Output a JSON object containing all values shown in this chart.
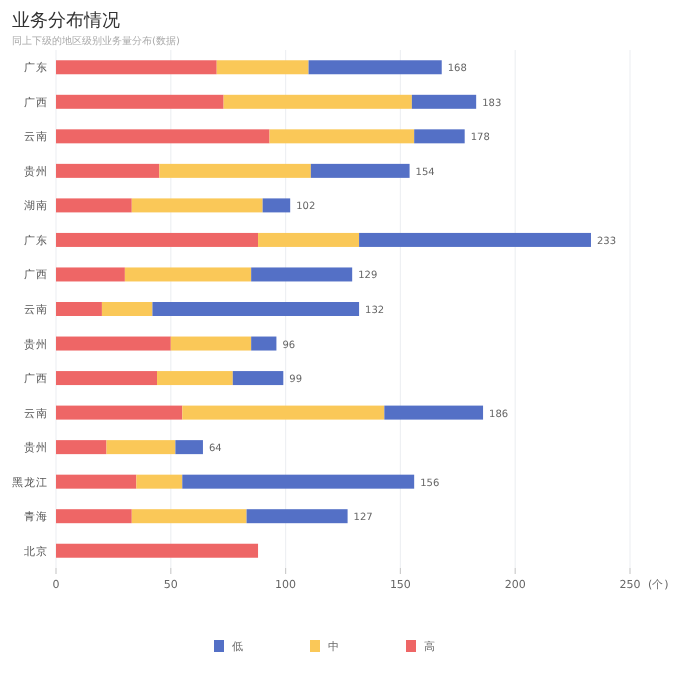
{
  "chart_data": {
    "type": "bar",
    "orientation": "horizontal",
    "stacked": true,
    "title": "业务分布情况",
    "subtitle": "同上下级的地区级别业务量分布(数据)",
    "xlabel": "(个)",
    "categories": [
      "广东",
      "广西",
      "云南",
      "贵州",
      "湖南",
      "广东",
      "广西",
      "云南",
      "贵州",
      "广西",
      "云南",
      "贵州",
      "黑龙江",
      "青海",
      "北京"
    ],
    "series": [
      {
        "name": "高",
        "color": "#ee6666",
        "values": [
          70,
          73,
          93,
          45,
          33,
          88,
          30,
          20,
          50,
          44,
          55,
          22,
          35,
          33,
          88
        ]
      },
      {
        "name": "中",
        "color": "#fac858",
        "values": [
          40,
          82,
          63,
          66,
          57,
          44,
          55,
          22,
          35,
          33,
          88,
          30,
          20,
          50,
          null
        ]
      },
      {
        "name": "低",
        "color": "#5470c6",
        "values": [
          58,
          28,
          22,
          43,
          12,
          101,
          44,
          90,
          11,
          22,
          43,
          12,
          101,
          44,
          null
        ]
      }
    ],
    "totals": [
      "168",
      "183",
      "178",
      "154",
      "102",
      "233",
      "129",
      "132",
      "96",
      "99",
      "186",
      "64",
      "156",
      "127",
      null
    ],
    "xlim": [
      0,
      250
    ],
    "xticks": [
      0,
      50,
      100,
      150,
      200,
      250
    ],
    "grid": "x",
    "legend": "bottom"
  }
}
